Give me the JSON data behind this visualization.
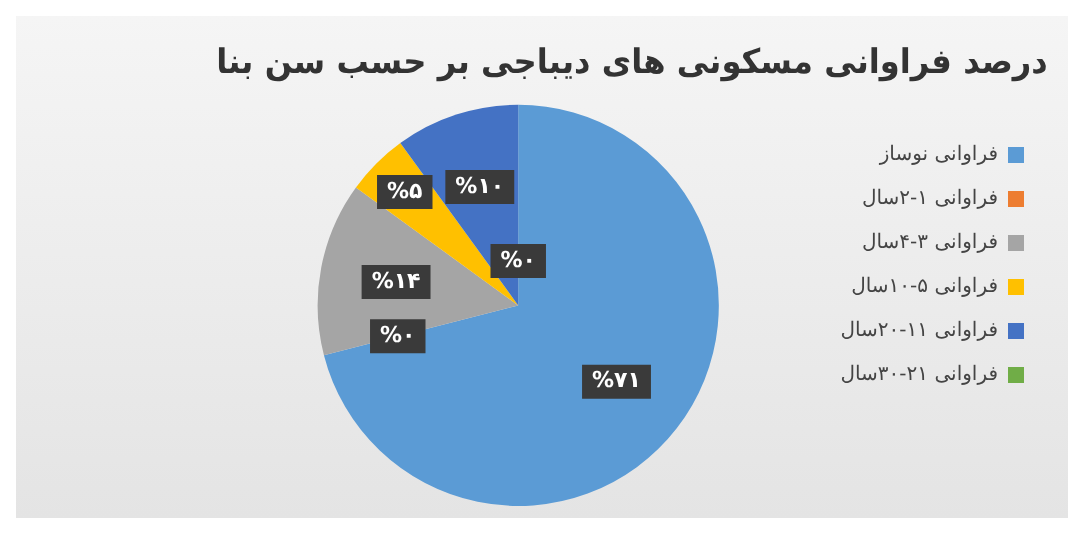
{
  "chart_data": {
    "type": "pie",
    "title": "درصد فراوانی مسکونی های دیباجی بر حسب سن بنا",
    "categories": [
      "فراوانی نوساز",
      "فراوانی ۱-۲سال",
      "فراوانی ۳-۴سال",
      "فراوانی ۵-۱۰سال",
      "فراوانی ۱۱-۲۰سال",
      "فراوانی ۲۱-۳۰سال"
    ],
    "values": [
      71,
      0,
      14,
      5,
      10,
      0
    ],
    "colors": [
      "#5b9bd5",
      "#ed7d31",
      "#a5a5a5",
      "#ffc000",
      "#4472c4",
      "#70ad47"
    ],
    "value_labels": [
      "%۷۱",
      "%۰",
      "%۱۴",
      "%۵",
      "%۱۰",
      "%۰"
    ],
    "legend": "right"
  }
}
